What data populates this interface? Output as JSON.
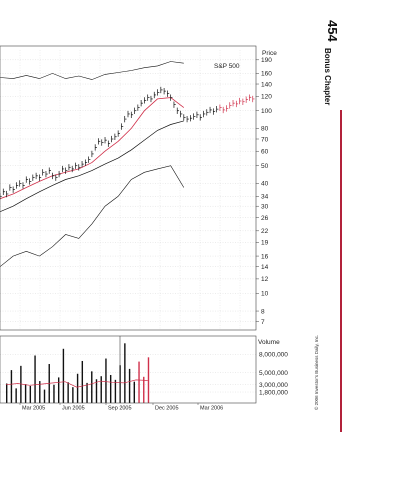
{
  "page": {
    "number": "454",
    "chapter": "Bonus Chapter",
    "copyright": "© 2006 Investor's Business Daily, Inc.",
    "rule_color": "#b2213a"
  },
  "chart_data": {
    "type": "line",
    "subtype": "daily price chart (log scale) with volume panel",
    "price_axis": {
      "label": "Price",
      "scale": "log",
      "range": [
        6.3,
        215
      ],
      "ticks": [
        "190",
        "160",
        "140",
        "120",
        "100",
        "80",
        "70",
        "60",
        "50",
        "40",
        "34",
        "30",
        "26",
        "22",
        "19",
        "16",
        "14",
        "12",
        "10",
        "8",
        "7"
      ]
    },
    "volume_axis": {
      "label": "Volume",
      "range": [
        0,
        11000000
      ],
      "ticks": [
        "8,000,000",
        "5,000,000",
        "3,000,000",
        "1,800,000"
      ]
    },
    "x_axis": {
      "ticks": [
        "Mar 2005",
        "Jun 2005",
        "Sep 2005",
        "Dec 2005",
        "Mar 2006"
      ]
    },
    "grid": true,
    "annotations": [
      "S&P 500"
    ],
    "colors": {
      "bars": "#111111",
      "ma_fast": "#d0304a",
      "ma_slow": "#111111",
      "sp500": "#111111",
      "rs_line": "#111111",
      "volume_avg": "#d0304a",
      "volume_recent": "#d0304a"
    },
    "price_series": {
      "x": [
        0,
        6,
        12,
        18,
        24,
        30,
        36,
        42,
        48,
        54,
        60,
        66,
        72,
        78,
        84,
        90,
        96,
        102,
        108,
        114,
        120,
        126,
        132,
        138,
        144,
        150,
        156,
        162,
        168,
        174,
        180,
        186,
        192,
        198,
        204,
        210,
        216,
        222,
        228,
        234,
        240,
        246,
        252,
        258,
        264,
        270,
        276,
        282,
        288,
        294,
        300,
        306,
        312,
        318,
        324,
        330,
        336,
        342,
        348,
        354,
        360,
        366,
        372,
        378,
        384,
        390,
        396,
        402,
        408,
        414,
        420,
        426,
        432,
        438,
        444,
        450,
        456,
        462,
        468
      ],
      "close": [
        34,
        36,
        35,
        38,
        37,
        39,
        40,
        39,
        42,
        41,
        43,
        44,
        43,
        46,
        45,
        47,
        44,
        43,
        45,
        48,
        47,
        49,
        48,
        50,
        49,
        51,
        52,
        54,
        58,
        63,
        68,
        67,
        69,
        66,
        70,
        72,
        75,
        82,
        90,
        96,
        95,
        100,
        104,
        110,
        114,
        118,
        116,
        122,
        126,
        130,
        128,
        124,
        118,
        108,
        100,
        96,
        92,
        90,
        91,
        93,
        95,
        92,
        96,
        98,
        101,
        99,
        102,
        104,
        101,
        103,
        107,
        110,
        109,
        113,
        112,
        115,
        118,
        116,
        120
      ]
    },
    "ma_fast": {
      "x": [
        0,
        24,
        48,
        72,
        96,
        120,
        144,
        168,
        192,
        216,
        240,
        264,
        288,
        312,
        336
      ],
      "values": [
        33,
        35,
        38,
        41,
        44,
        46,
        48,
        52,
        60,
        68,
        80,
        100,
        116,
        118,
        104
      ]
    },
    "ma_slow": {
      "x": [
        0,
        24,
        48,
        72,
        96,
        120,
        144,
        168,
        192,
        216,
        240,
        264,
        288,
        312,
        336
      ],
      "values": [
        28,
        30,
        33,
        36,
        39,
        42,
        44,
        47,
        51,
        55,
        61,
        69,
        78,
        84,
        88
      ]
    },
    "sp500": {
      "x": [
        0,
        24,
        48,
        72,
        96,
        120,
        144,
        168,
        192,
        216,
        240,
        264,
        288,
        312,
        336
      ],
      "values": [
        152,
        150,
        156,
        150,
        160,
        150,
        155,
        148,
        158,
        162,
        166,
        172,
        176,
        186,
        182
      ]
    },
    "rs_line": {
      "x": [
        0,
        24,
        48,
        72,
        96,
        120,
        144,
        168,
        192,
        216,
        240,
        264,
        288,
        312,
        336
      ],
      "values": [
        14,
        16,
        17,
        16,
        18,
        21,
        20,
        24,
        30,
        34,
        42,
        46,
        48,
        50,
        38
      ]
    },
    "volume": {
      "x": [
        0,
        12,
        24,
        36,
        48,
        60,
        72,
        84,
        96,
        108,
        120,
        132,
        144,
        156,
        168,
        180,
        192,
        204,
        216,
        228,
        240,
        252,
        264,
        276,
        288,
        300,
        312,
        324,
        336,
        348,
        360
      ],
      "values": [
        3200000,
        5400000,
        2400000,
        6100000,
        3100000,
        2800000,
        7800000,
        3600000,
        2200000,
        6400000,
        3000000,
        4200000,
        8900000,
        3400000,
        2600000,
        4800000,
        6900000,
        3300000,
        5200000,
        3900000,
        4400000,
        7300000,
        4600000,
        3800000,
        6200000,
        9800000,
        5600000,
        3500000,
        6800000,
        4300000,
        7500000
      ]
    },
    "volume_avg": {
      "x": [
        0,
        30,
        60,
        90,
        120,
        150,
        180,
        210,
        240,
        270,
        300,
        330,
        360
      ],
      "values": [
        3000000,
        3200000,
        2900000,
        3100000,
        3300000,
        3500000,
        2600000,
        3000000,
        3600000,
        3400000,
        3300000,
        3800000,
        3700000
      ]
    }
  }
}
